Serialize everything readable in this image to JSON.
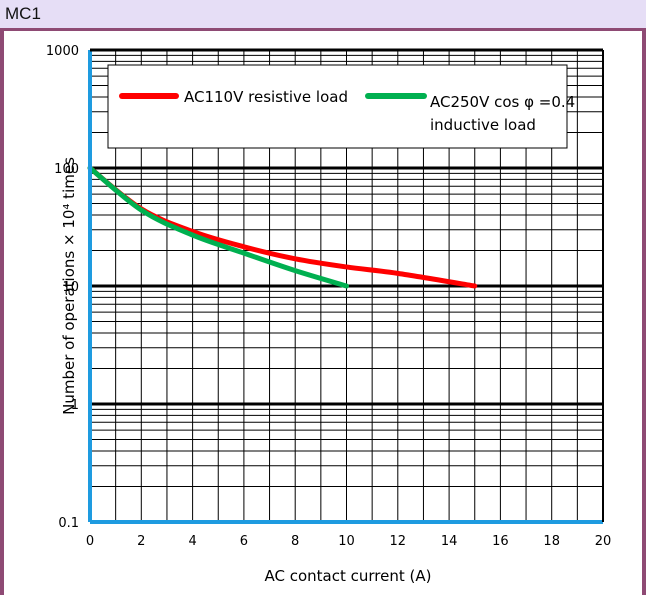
{
  "header": {
    "title": "MC1"
  },
  "colors": {
    "header_bg": "#e6def6",
    "border": "#8e4a74",
    "axis": "#1e9be0",
    "series_red": "#ff0000",
    "series_green": "#00b050",
    "grid": "#000000"
  },
  "chart_data": {
    "type": "line",
    "title": "",
    "xlabel": "AC contact current (A)",
    "ylabel": "Number of operations × 10⁴  times",
    "xlim": [
      0,
      20
    ],
    "ylim": [
      0.1,
      1000
    ],
    "y_scale": "log",
    "grid": true,
    "legend_position": "top",
    "x_ticks": [
      "0",
      "2",
      "4",
      "6",
      "8",
      "10",
      "12",
      "14",
      "16",
      "18",
      "20"
    ],
    "y_ticks": [
      "0.1",
      "1",
      "10",
      "100",
      "1000"
    ],
    "series": [
      {
        "name": "AC110V resistive load",
        "color": "#ff0000",
        "points": [
          [
            0,
            100
          ],
          [
            2,
            45
          ],
          [
            4,
            29
          ],
          [
            6,
            21.5
          ],
          [
            8,
            17
          ],
          [
            10,
            14.5
          ],
          [
            12,
            12.8
          ],
          [
            15,
            10
          ]
        ]
      },
      {
        "name_lines": [
          "AC250V cos φ =0.4",
          "inductive load"
        ],
        "color": "#00b050",
        "points": [
          [
            0,
            100
          ],
          [
            2,
            44
          ],
          [
            4,
            27
          ],
          [
            6,
            19
          ],
          [
            8,
            13.5
          ],
          [
            10,
            10
          ]
        ]
      }
    ]
  }
}
